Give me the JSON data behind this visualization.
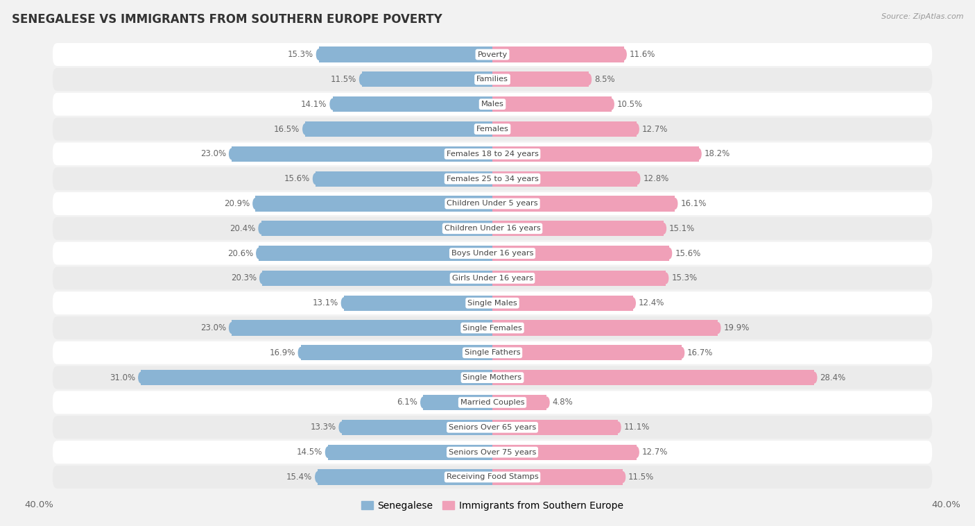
{
  "title": "SENEGALESE VS IMMIGRANTS FROM SOUTHERN EUROPE POVERTY",
  "source": "Source: ZipAtlas.com",
  "categories": [
    "Poverty",
    "Families",
    "Males",
    "Females",
    "Females 18 to 24 years",
    "Females 25 to 34 years",
    "Children Under 5 years",
    "Children Under 16 years",
    "Boys Under 16 years",
    "Girls Under 16 years",
    "Single Males",
    "Single Females",
    "Single Fathers",
    "Single Mothers",
    "Married Couples",
    "Seniors Over 65 years",
    "Seniors Over 75 years",
    "Receiving Food Stamps"
  ],
  "senegalese": [
    15.3,
    11.5,
    14.1,
    16.5,
    23.0,
    15.6,
    20.9,
    20.4,
    20.6,
    20.3,
    13.1,
    23.0,
    16.9,
    31.0,
    6.1,
    13.3,
    14.5,
    15.4
  ],
  "immigrants": [
    11.6,
    8.5,
    10.5,
    12.7,
    18.2,
    12.8,
    16.1,
    15.1,
    15.6,
    15.3,
    12.4,
    19.9,
    16.7,
    28.4,
    4.8,
    11.1,
    12.7,
    11.5
  ],
  "senegalese_color": "#8ab4d4",
  "immigrants_color": "#f0a0b8",
  "background_color": "#f2f2f2",
  "row_color_even": "#ffffff",
  "row_color_odd": "#ebebeb",
  "xlim": 40.0,
  "legend_label_senegalese": "Senegalese",
  "legend_label_immigrants": "Immigrants from Southern Europe",
  "value_label_color": "#666666",
  "title_color": "#333333",
  "source_color": "#999999",
  "cat_label_color": "#444444"
}
